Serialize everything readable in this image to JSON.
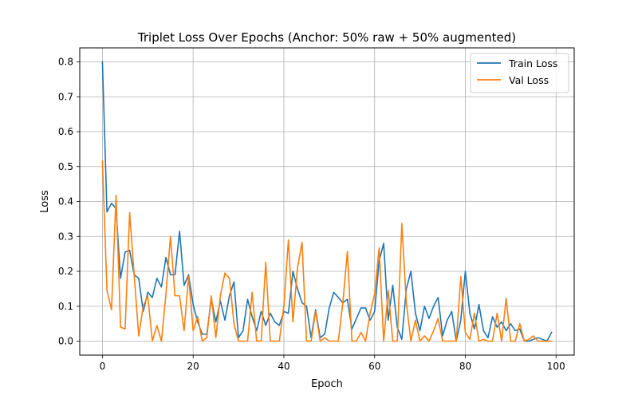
{
  "chart_data": {
    "type": "line",
    "title": "Triplet Loss Over Epochs (Anchor: 50% raw + 50% augmented)",
    "xlabel": "Epoch",
    "ylabel": "Loss",
    "xlim": [
      -5,
      104
    ],
    "ylim": [
      -0.04,
      0.84
    ],
    "xticks": [
      0,
      20,
      40,
      60,
      80,
      100
    ],
    "yticks": [
      0.0,
      0.1,
      0.2,
      0.3,
      0.4,
      0.5,
      0.6,
      0.7,
      0.8
    ],
    "xtick_labels": [
      "0",
      "20",
      "40",
      "60",
      "80",
      "100"
    ],
    "ytick_labels": [
      "0.0",
      "0.1",
      "0.2",
      "0.3",
      "0.4",
      "0.5",
      "0.6",
      "0.7",
      "0.8"
    ],
    "grid": true,
    "legend_position": "top-right",
    "series": [
      {
        "name": "Train Loss",
        "color": "#1f77b4",
        "values": [
          0.8,
          0.37,
          0.395,
          0.38,
          0.18,
          0.255,
          0.26,
          0.19,
          0.18,
          0.085,
          0.14,
          0.125,
          0.18,
          0.155,
          0.24,
          0.19,
          0.19,
          0.315,
          0.16,
          0.19,
          0.105,
          0.055,
          0.02,
          0.02,
          0.12,
          0.055,
          0.115,
          0.06,
          0.13,
          0.17,
          0.01,
          0.03,
          0.12,
          0.07,
          0.03,
          0.085,
          0.045,
          0.08,
          0.055,
          0.045,
          0.085,
          0.08,
          0.2,
          0.15,
          0.11,
          0.1,
          0.01,
          0.09,
          0.01,
          0.02,
          0.095,
          0.14,
          0.125,
          0.11,
          0.12,
          0.035,
          0.065,
          0.095,
          0.095,
          0.06,
          0.085,
          0.23,
          0.28,
          0.06,
          0.16,
          0.04,
          0.005,
          0.15,
          0.2,
          0.08,
          0.03,
          0.1,
          0.065,
          0.1,
          0.125,
          0.015,
          0.06,
          0.085,
          0.0,
          0.06,
          0.2,
          0.08,
          0.035,
          0.105,
          0.03,
          0.01,
          0.07,
          0.04,
          0.055,
          0.03,
          0.05,
          0.03,
          0.035,
          0.0,
          0.0,
          0.005,
          0.01,
          0.005,
          0.0,
          0.025
        ]
      },
      {
        "name": "Val Loss",
        "color": "#ff7f0e",
        "values": [
          0.515,
          0.145,
          0.09,
          0.418,
          0.04,
          0.035,
          0.368,
          0.19,
          0.015,
          0.1,
          0.13,
          0.0,
          0.045,
          0.0,
          0.135,
          0.3,
          0.13,
          0.13,
          0.03,
          0.185,
          0.03,
          0.07,
          0.0,
          0.01,
          0.13,
          0.01,
          0.13,
          0.195,
          0.18,
          0.05,
          0.0,
          0.0,
          0.0,
          0.14,
          0.0,
          0.0,
          0.226,
          0.0,
          0.0,
          0.0,
          0.1,
          0.29,
          0.055,
          0.21,
          0.283,
          0.0,
          0.0,
          0.085,
          0.0,
          0.01,
          0.0,
          0.0,
          0.0,
          0.11,
          0.257,
          0.0,
          0.0,
          0.025,
          0.0,
          0.08,
          0.135,
          0.267,
          0.0,
          0.145,
          0.0,
          0.0,
          0.337,
          0.11,
          0.0,
          0.06,
          0.0,
          0.015,
          0.0,
          0.03,
          0.065,
          0.0,
          0.0,
          0.0,
          0.0,
          0.185,
          0.025,
          0.005,
          0.08,
          0.0,
          0.005,
          0.0,
          0.0,
          0.08,
          0.0,
          0.123,
          0.0,
          0.0,
          0.05,
          0.0,
          0.005,
          0.015,
          0.0,
          0.0,
          0.0,
          0.0
        ]
      }
    ]
  }
}
